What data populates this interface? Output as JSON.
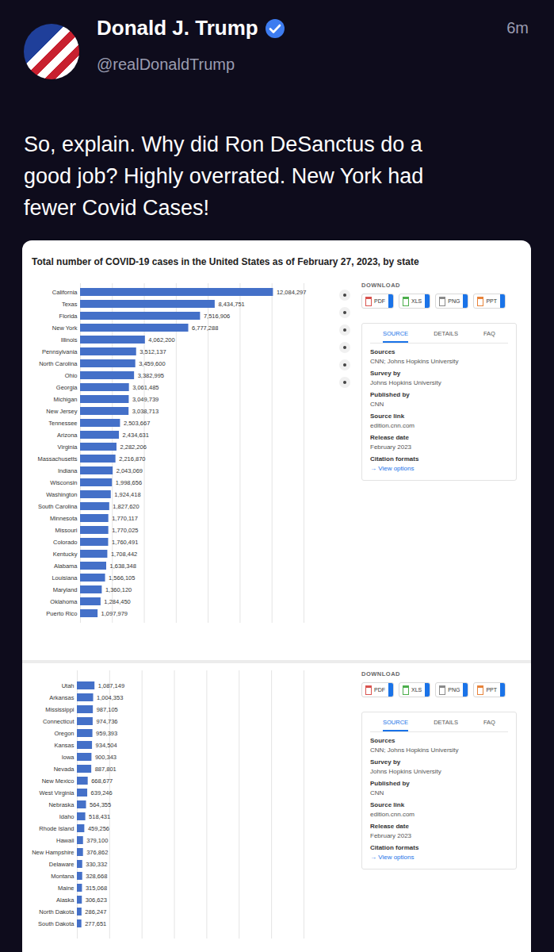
{
  "post": {
    "author": "Donald J. Trump",
    "handle": "@realDonaldTrump",
    "time": "6m",
    "text": "So, explain. Why did Ron DeSanctus do a good job? Highly overrated. New York had fewer Covid Cases!"
  },
  "side_panel": {
    "download": "DOWNLOAD",
    "formats": [
      "PDF",
      "XLS",
      "PNG",
      "PPT"
    ],
    "tabs": [
      "SOURCE",
      "DETAILS",
      "FAQ"
    ],
    "fields": [
      {
        "label": "Sources",
        "value": "CNN; Johns Hopkins University"
      },
      {
        "label": "Survey by",
        "value": "Johns Hopkins University"
      },
      {
        "label": "Published by",
        "value": "CNN"
      },
      {
        "label": "Source link",
        "value": "edition.cnn.com"
      },
      {
        "label": "Release date",
        "value": "February 2023"
      },
      {
        "label": "Citation formats",
        "value": "→ View options"
      }
    ]
  },
  "chart_data": [
    {
      "type": "bar",
      "orientation": "horizontal",
      "title": "Total number of COVID-19 cases in the United States as of February 27, 2023, by state",
      "categories": [
        "California",
        "Texas",
        "Florida",
        "New York",
        "Illinois",
        "Pennsylvania",
        "North Carolina",
        "Ohio",
        "Georgia",
        "Michigan",
        "New Jersey",
        "Tennessee",
        "Arizona",
        "Virginia",
        "Massachusetts",
        "Indiana",
        "Wisconsin",
        "Washington",
        "South Carolina",
        "Minnesota",
        "Missouri",
        "Colorado",
        "Kentucky",
        "Alabama",
        "Louisiana",
        "Maryland",
        "Oklahoma",
        "Puerto Rico"
      ],
      "values": [
        12084297,
        8434751,
        7516906,
        6777288,
        4062200,
        3512137,
        3459600,
        3382995,
        3061485,
        3049739,
        3038713,
        2503667,
        2434631,
        2282206,
        2216870,
        2043069,
        1998656,
        1924418,
        1827620,
        1770117,
        1770025,
        1760491,
        1708442,
        1638348,
        1566105,
        1360120,
        1284450,
        1097979
      ],
      "value_labels": [
        "12,084,297",
        "8,434,751",
        "7,516,906",
        "6,777,288",
        "4,062,200",
        "3,512,137",
        "3,459,600",
        "3,382,995",
        "3,061,485",
        "3,049,739",
        "3,038,713",
        "2,503,667",
        "2,434,631",
        "2,282,206",
        "2,216,870",
        "2,043,069",
        "1,998,656",
        "1,924,418",
        "1,827,620",
        "1,770,117",
        "1,770,025",
        "1,760,491",
        "1,708,442",
        "1,638,348",
        "1,566,105",
        "1,360,120",
        "1,284,450",
        "1,097,979"
      ],
      "color": "#4470c8",
      "xlim": [
        0,
        14000000
      ],
      "xticks": [
        0,
        2000000,
        4000000,
        6000000,
        8000000,
        10000000,
        12000000,
        14000000
      ],
      "grid": true,
      "data_labels": true,
      "tick_labels": "y"
    },
    {
      "type": "bar",
      "orientation": "horizontal",
      "categories": [
        "Utah",
        "Arkansas",
        "Mississippi",
        "Connecticut",
        "Oregon",
        "Kansas",
        "Iowa",
        "Nevada",
        "New Mexico",
        "West Virginia",
        "Nebraska",
        "Idaho",
        "Rhode Island",
        "Hawaii",
        "New Hampshire",
        "Delaware",
        "Montana",
        "Maine",
        "Alaska",
        "North Dakota",
        "South Dakota"
      ],
      "values": [
        1087149,
        1004353,
        987105,
        974736,
        959393,
        934504,
        900343,
        887801,
        668677,
        639246,
        564355,
        518431,
        459256,
        379100,
        376862,
        330332,
        328668,
        315068,
        306623,
        286247,
        277651
      ],
      "value_labels": [
        "1,087,149",
        "1,004,353",
        "987,105",
        "974,736",
        "959,393",
        "934,504",
        "900,343",
        "887,801",
        "668,677",
        "639,246",
        "564,355",
        "518,431",
        "459,256",
        "379,100",
        "376,862",
        "330,332",
        "328,668",
        "315,068",
        "306,623",
        "286,247",
        "277,651"
      ],
      "color": "#4470c8",
      "xlim": [
        0,
        14000000
      ],
      "xticks": [
        0,
        2000000,
        4000000,
        6000000,
        8000000,
        10000000,
        12000000,
        14000000
      ],
      "grid": true,
      "data_labels": true,
      "tick_labels": "y"
    }
  ]
}
